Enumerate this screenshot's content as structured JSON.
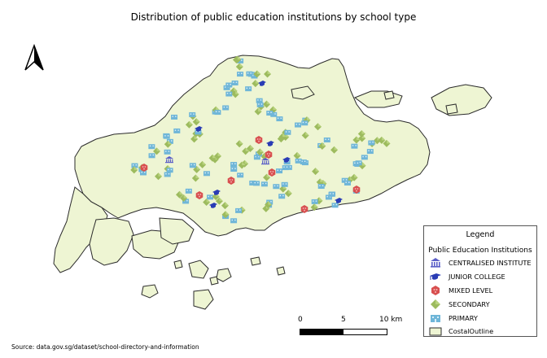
{
  "title": "Distribution of public education institutions by school type",
  "source": "Source: data.gov.sg/dataset/school-directory-and-information",
  "legend": {
    "title": "Legend",
    "subtitle": "Public Education Institutions",
    "items": [
      {
        "label": "CENTRALISED INSTITUTE",
        "icon": "institute-icon",
        "color": "#5b5fc7"
      },
      {
        "label": "JUNIOR COLLEGE",
        "icon": "graduation-cap-icon",
        "color": "#2a3cb5"
      },
      {
        "label": "MIXED LEVEL",
        "icon": "mixed-level-icon",
        "color": "#d84f4f"
      },
      {
        "label": "SECONDARY",
        "icon": "secondary-diamond-icon",
        "color": "#9dbb5e"
      },
      {
        "label": "PRIMARY",
        "icon": "primary-school-icon",
        "color": "#6fb6d8"
      },
      {
        "label": "CostalOutline",
        "icon": "land-swatch-icon",
        "color": "#eef5d3"
      }
    ]
  },
  "scale": {
    "labels": [
      "0",
      "5",
      "10 km"
    ]
  },
  "colors": {
    "land": "#eef5d3",
    "outline": "#2b2b2b",
    "primary": "#6fb6d8",
    "secondary": "#9dbb5e",
    "mixed": "#d84f4f",
    "jc": "#2a3cb5",
    "centralised": "#5b5fc7"
  }
}
